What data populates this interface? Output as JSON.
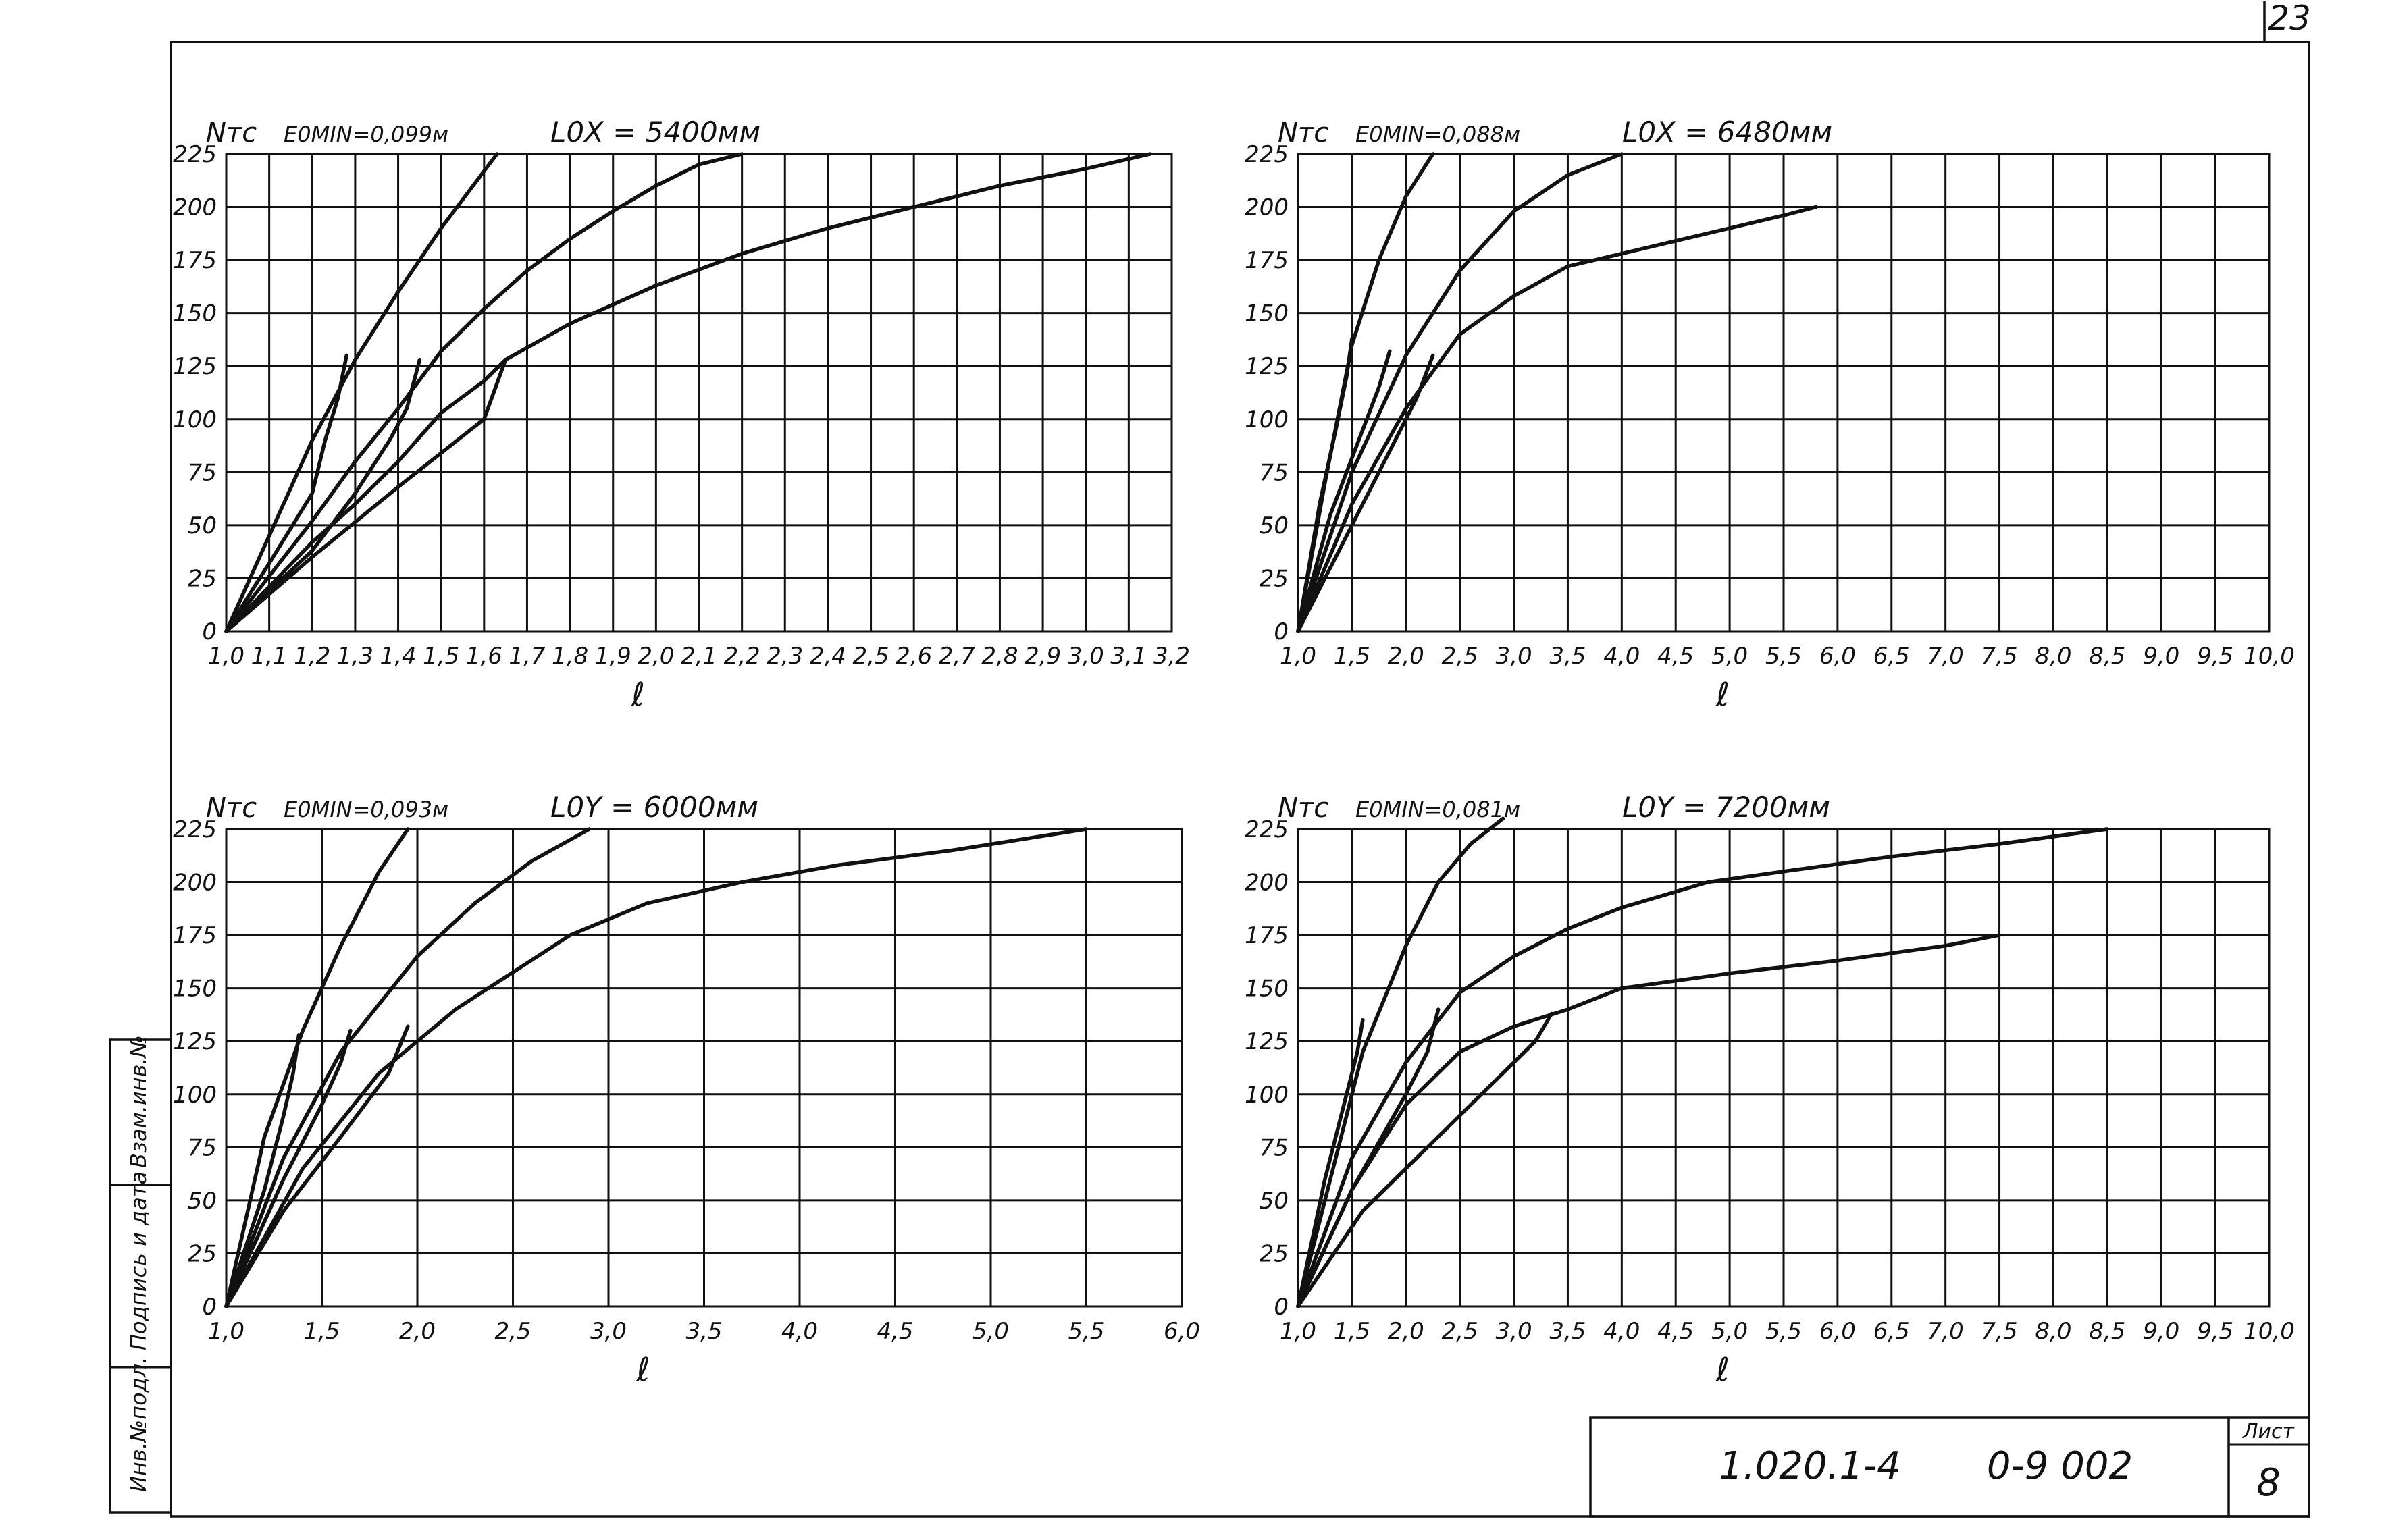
{
  "sheet": {
    "page_number": "23",
    "title_block": {
      "doc_code": "1.020.1-4",
      "series_code": "0-9 002",
      "sheet_label": "Лист",
      "sheet_no": "8"
    },
    "side_stamp": [
      "Инв.№подл.",
      "Подпись и дата",
      "Взам.инв.№"
    ]
  },
  "chart_data": [
    {
      "type": "line",
      "ylabel": "Nтс",
      "xlabel": "ℓ",
      "eomin_label": "E0MIN=0,099м",
      "length_label": "L0X = 5400мм",
      "x_ticks": [
        "1,0",
        "1,1",
        "1,2",
        "1,3",
        "1,4",
        "1,5",
        "1,6",
        "1,7",
        "1,8",
        "1,9",
        "2,0",
        "2,1",
        "2,2",
        "2,3",
        "2,4",
        "2,5",
        "2,6",
        "2,7",
        "2,8",
        "2,9",
        "3,0",
        "3,1",
        "3,2"
      ],
      "y_ticks": [
        "0",
        "25",
        "50",
        "75",
        "100",
        "125",
        "150",
        "175",
        "200",
        "225"
      ],
      "xlim": [
        1.0,
        3.2
      ],
      "ylim": [
        0,
        225
      ],
      "grid": true,
      "series": [
        {
          "x": [
            1.0,
            1.1,
            1.2,
            1.3,
            1.4,
            1.5,
            1.63
          ],
          "y": [
            0,
            45,
            90,
            128,
            160,
            190,
            225
          ]
        },
        {
          "x": [
            1.0,
            1.2,
            1.3,
            1.4,
            1.5,
            1.6,
            1.7,
            1.8,
            1.9,
            2.0,
            2.1,
            2.2
          ],
          "y": [
            0,
            52,
            80,
            105,
            132,
            152,
            170,
            185,
            198,
            210,
            220,
            225
          ]
        },
        {
          "x": [
            1.0,
            1.2,
            1.3,
            1.4,
            1.5,
            1.6,
            1.65,
            1.8,
            2.0,
            2.2,
            2.4,
            2.6,
            2.8,
            3.0,
            3.15
          ],
          "y": [
            0,
            42,
            60,
            80,
            103,
            118,
            128,
            145,
            163,
            178,
            190,
            200,
            210,
            218,
            225
          ]
        },
        {
          "x": [
            1.0,
            1.1,
            1.2,
            1.23,
            1.26,
            1.28
          ],
          "y": [
            0,
            32,
            65,
            90,
            110,
            130
          ]
        },
        {
          "x": [
            1.0,
            1.2,
            1.3,
            1.38,
            1.42,
            1.45
          ],
          "y": [
            0,
            38,
            65,
            90,
            105,
            128
          ]
        },
        {
          "x": [
            1.0,
            1.2,
            1.4,
            1.6,
            1.65
          ],
          "y": [
            0,
            35,
            68,
            100,
            128
          ]
        }
      ]
    },
    {
      "type": "line",
      "ylabel": "Nтс",
      "xlabel": "ℓ",
      "eomin_label": "E0MIN=0,088м",
      "length_label": "L0X = 6480мм",
      "x_ticks": [
        "1,0",
        "1,5",
        "2,0",
        "2,5",
        "3,0",
        "3,5",
        "4,0",
        "4,5",
        "5,0",
        "5,5",
        "6,0",
        "6,5",
        "7,0",
        "7,5",
        "8,0",
        "8,5",
        "9,0",
        "9,5",
        "10,0"
      ],
      "y_ticks": [
        "0",
        "25",
        "50",
        "75",
        "100",
        "125",
        "150",
        "175",
        "200",
        "225"
      ],
      "xlim": [
        1.0,
        10.0
      ],
      "ylim": [
        0,
        225
      ],
      "grid": true,
      "series": [
        {
          "x": [
            1.0,
            1.25,
            1.5,
            1.75,
            2.0,
            2.25
          ],
          "y": [
            0,
            70,
            135,
            175,
            205,
            225
          ]
        },
        {
          "x": [
            1.0,
            1.5,
            2.0,
            2.5,
            3.0,
            3.5,
            4.0
          ],
          "y": [
            0,
            75,
            130,
            170,
            198,
            215,
            225
          ]
        },
        {
          "x": [
            1.0,
            1.5,
            2.0,
            2.5,
            3.0,
            3.5,
            4.0,
            4.5,
            5.0,
            5.5,
            5.8
          ],
          "y": [
            0,
            60,
            105,
            140,
            158,
            172,
            178,
            184,
            190,
            196,
            200
          ]
        },
        {
          "x": [
            1.0,
            1.2,
            1.35,
            1.45,
            1.5
          ],
          "y": [
            0,
            60,
            95,
            120,
            138
          ]
        },
        {
          "x": [
            1.0,
            1.3,
            1.6,
            1.75,
            1.85
          ],
          "y": [
            0,
            55,
            95,
            115,
            132
          ]
        },
        {
          "x": [
            1.0,
            1.5,
            1.9,
            2.1,
            2.25
          ],
          "y": [
            0,
            50,
            90,
            110,
            130
          ]
        }
      ]
    },
    {
      "type": "line",
      "ylabel": "Nтс",
      "xlabel": "ℓ",
      "eomin_label": "E0MIN=0,093м",
      "length_label": "L0Y = 6000мм",
      "x_ticks": [
        "1,0",
        "1,5",
        "2,0",
        "2,5",
        "3,0",
        "3,5",
        "4,0",
        "4,5",
        "5,0",
        "5,5",
        "6,0"
      ],
      "y_ticks": [
        "0",
        "25",
        "50",
        "75",
        "100",
        "125",
        "150",
        "175",
        "200",
        "225"
      ],
      "xlim": [
        1.0,
        6.0
      ],
      "ylim": [
        0,
        225
      ],
      "grid": true,
      "series": [
        {
          "x": [
            1.0,
            1.2,
            1.4,
            1.6,
            1.8,
            1.95
          ],
          "y": [
            0,
            80,
            130,
            170,
            205,
            225
          ]
        },
        {
          "x": [
            1.0,
            1.3,
            1.6,
            2.0,
            2.3,
            2.6,
            2.9
          ],
          "y": [
            0,
            70,
            120,
            165,
            190,
            210,
            225
          ]
        },
        {
          "x": [
            1.0,
            1.4,
            1.8,
            2.2,
            2.8,
            3.2,
            3.7,
            4.2,
            4.8,
            5.5
          ],
          "y": [
            0,
            65,
            110,
            140,
            175,
            190,
            200,
            208,
            215,
            225
          ]
        },
        {
          "x": [
            1.0,
            1.2,
            1.3,
            1.35,
            1.38
          ],
          "y": [
            0,
            55,
            90,
            110,
            128
          ]
        },
        {
          "x": [
            1.0,
            1.3,
            1.5,
            1.6,
            1.65
          ],
          "y": [
            0,
            60,
            95,
            115,
            130
          ]
        },
        {
          "x": [
            1.0,
            1.3,
            1.6,
            1.85,
            1.95
          ],
          "y": [
            0,
            45,
            80,
            110,
            132
          ]
        }
      ]
    },
    {
      "type": "line",
      "ylabel": "Nтс",
      "xlabel": "ℓ",
      "eomin_label": "E0MIN=0,081м",
      "length_label": "L0Y = 7200мм",
      "x_ticks": [
        "1,0",
        "1,5",
        "2,0",
        "2,5",
        "3,0",
        "3,5",
        "4,0",
        "4,5",
        "5,0",
        "5,5",
        "6,0",
        "6,5",
        "7,0",
        "7,5",
        "8,0",
        "8,5",
        "9,0",
        "9,5",
        "10,0"
      ],
      "y_ticks": [
        "0",
        "25",
        "50",
        "75",
        "100",
        "125",
        "150",
        "175",
        "200",
        "225"
      ],
      "xlim": [
        1.0,
        10.0
      ],
      "ylim": [
        0,
        225
      ],
      "grid": true,
      "series": [
        {
          "x": [
            1.0,
            1.3,
            1.6,
            2.0,
            2.3,
            2.6,
            2.9
          ],
          "y": [
            0,
            60,
            120,
            170,
            200,
            218,
            230
          ]
        },
        {
          "x": [
            1.0,
            1.5,
            2.0,
            2.5,
            3.0,
            3.5,
            4.0,
            4.8,
            5.5,
            6.5,
            7.5,
            8.5
          ],
          "y": [
            0,
            70,
            115,
            148,
            165,
            178,
            188,
            200,
            205,
            212,
            218,
            225
          ]
        },
        {
          "x": [
            1.0,
            1.5,
            2.0,
            2.5,
            3.0,
            3.5,
            4.0,
            5.0,
            6.0,
            7.0,
            7.5
          ],
          "y": [
            0,
            55,
            95,
            120,
            132,
            140,
            150,
            157,
            163,
            170,
            175
          ]
        },
        {
          "x": [
            1.0,
            1.25,
            1.45,
            1.55,
            1.6
          ],
          "y": [
            0,
            60,
            100,
            120,
            135
          ]
        },
        {
          "x": [
            1.0,
            1.5,
            2.0,
            2.2,
            2.3
          ],
          "y": [
            0,
            55,
            100,
            120,
            140
          ]
        },
        {
          "x": [
            1.0,
            1.6,
            2.3,
            2.8,
            3.2,
            3.35
          ],
          "y": [
            0,
            45,
            80,
            105,
            125,
            138
          ]
        }
      ]
    }
  ]
}
